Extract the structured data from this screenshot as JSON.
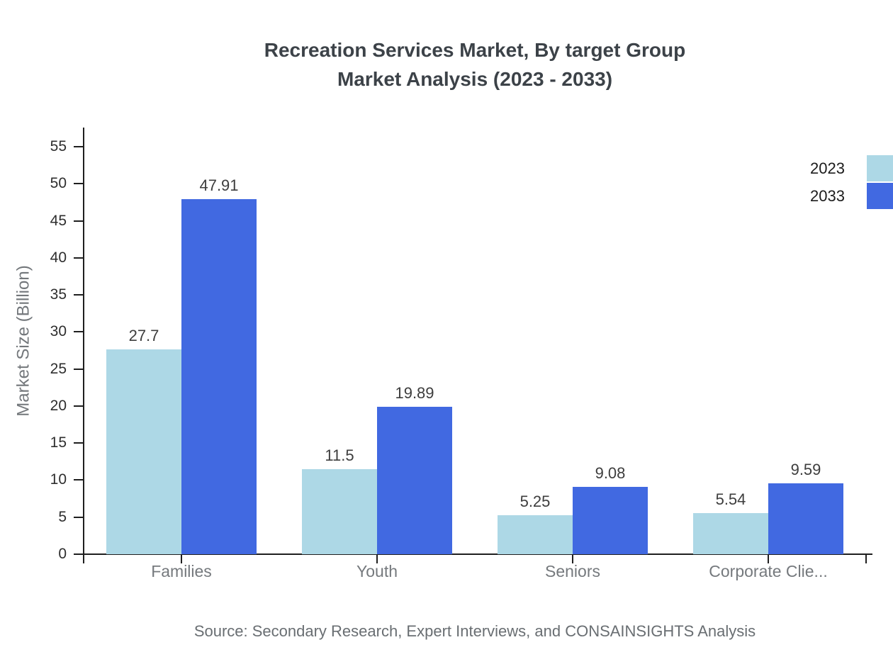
{
  "title": {
    "line1": "Recreation Services Market, By target Group",
    "line2": "Market Analysis (2023 - 2033)"
  },
  "source": "Source: Secondary Research, Expert Interviews, and CONSAINSIGHTS Analysis",
  "chart_data": {
    "type": "bar",
    "title": "Recreation Services Market, By target Group Market Analysis (2023 - 2033)",
    "categories": [
      "Families",
      "Youth",
      "Seniors",
      "Corporate Clie..."
    ],
    "series": [
      {
        "name": "2023",
        "color": "#ADD8E6",
        "values": [
          27.7,
          11.5,
          5.25,
          5.54
        ]
      },
      {
        "name": "2033",
        "color": "#4169E1",
        "values": [
          47.91,
          19.89,
          9.08,
          9.59
        ]
      }
    ],
    "xlabel": "",
    "ylabel": "Market Size (Billion)",
    "yticks": [
      0,
      5,
      10,
      15,
      20,
      25,
      30,
      35,
      40,
      45,
      50,
      55
    ],
    "ylim": [
      0,
      57.6
    ],
    "grid": false,
    "legend_position": "top-right",
    "value_labels": true,
    "colors": {
      "axis": "#1f1f1f",
      "value_label": "#3d3d3d",
      "tick_label": "#2e2e2e",
      "category_label": "#75797d"
    }
  }
}
